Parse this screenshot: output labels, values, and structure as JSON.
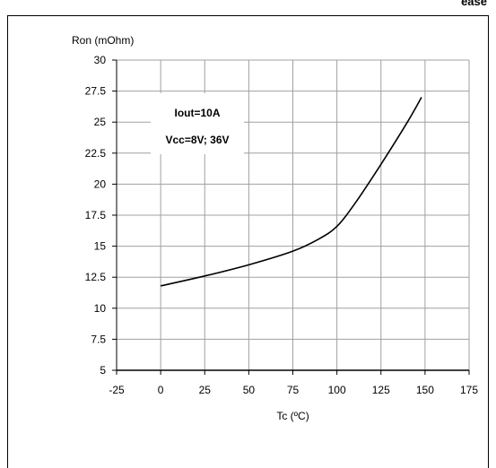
{
  "header_fragment": "ease",
  "chart_data": {
    "type": "line",
    "title": "",
    "ylabel": "Ron (mOhm)",
    "xlabel": "Tc (ºC)",
    "xlim": [
      -25,
      175
    ],
    "ylim": [
      5,
      30
    ],
    "x_ticks": [
      "-25",
      "0",
      "25",
      "50",
      "75",
      "100",
      "125",
      "150",
      "175"
    ],
    "y_ticks": [
      "5",
      "7.5",
      "10",
      "12.5",
      "15",
      "17.5",
      "20",
      "22.5",
      "25",
      "27.5",
      "30"
    ],
    "grid": true,
    "annotations": [
      "Iout=10A",
      "Vcc=8V; 36V"
    ],
    "series": [
      {
        "color": "#000000",
        "x": [
          0,
          25,
          50,
          75,
          90,
          100,
          110,
          125,
          140,
          148
        ],
        "y": [
          11.8,
          12.6,
          13.5,
          14.6,
          15.6,
          16.6,
          18.4,
          21.6,
          25.0,
          27.0
        ]
      }
    ]
  }
}
